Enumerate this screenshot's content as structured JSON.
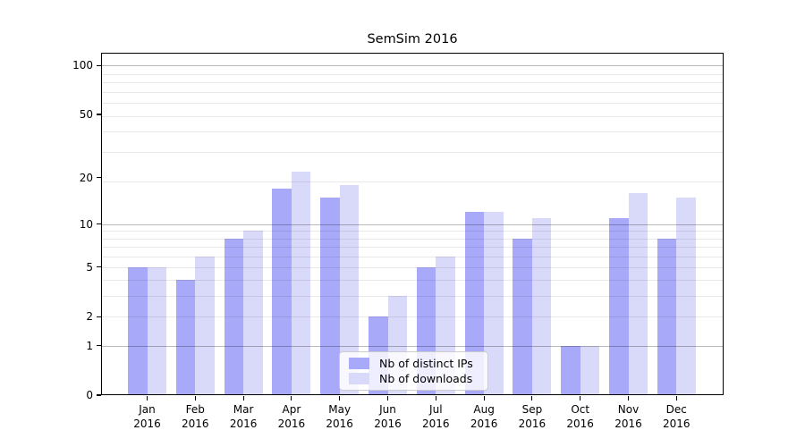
{
  "figure": {
    "background": "#ffffff"
  },
  "chart_data": {
    "type": "bar",
    "title": "SemSim 2016",
    "categories": [
      "Jan",
      "Feb",
      "Mar",
      "Apr",
      "May",
      "Jun",
      "Jul",
      "Aug",
      "Sep",
      "Oct",
      "Nov",
      "Dec"
    ],
    "year_label": "2016",
    "series": [
      {
        "name": "Nb of distinct IPs",
        "color": "#a9a9fa",
        "values": [
          5,
          4,
          8,
          17,
          15,
          2,
          5,
          12,
          8,
          1,
          11,
          8
        ]
      },
      {
        "name": "Nb of downloads",
        "color": "#d9d9f9",
        "values": [
          5,
          6,
          9,
          22,
          18,
          3,
          6,
          12,
          11,
          1,
          16,
          15
        ]
      }
    ],
    "xlabel": "",
    "ylabel": "",
    "yscale": "log1p",
    "yticks": [
      100,
      50,
      20,
      10,
      5,
      2,
      1,
      0
    ],
    "ylim": [
      0,
      120
    ],
    "grid": "on",
    "grid_over_bars": true,
    "legend_position": "lower center",
    "colors": {
      "grid_minor": "#e8e8e8",
      "grid_major": "#bababa",
      "axis": "#000000",
      "text": "#000000"
    }
  }
}
